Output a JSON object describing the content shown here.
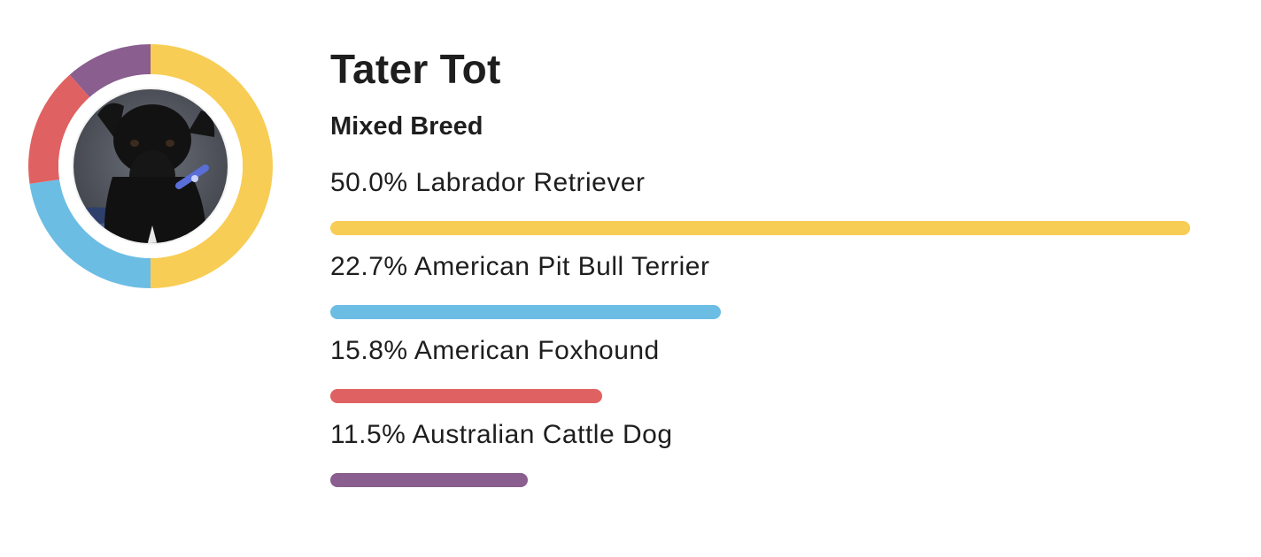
{
  "dog": {
    "name": "Tater Tot",
    "breed_type": "Mixed Breed",
    "photo": "black-dog-photo"
  },
  "breeds": [
    {
      "percent_label": "50.0%",
      "name": "Labrador Retriever",
      "percent": 50.0,
      "color": "#F8CD55"
    },
    {
      "percent_label": "22.7%",
      "name": "American Pit Bull Terrier",
      "percent": 22.7,
      "color": "#6CBDE4"
    },
    {
      "percent_label": "15.8%",
      "name": "American Foxhound",
      "percent": 15.8,
      "color": "#E06161"
    },
    {
      "percent_label": "11.5%",
      "name": "Australian Cattle Dog",
      "percent": 11.5,
      "color": "#8A5E8F"
    }
  ]
}
